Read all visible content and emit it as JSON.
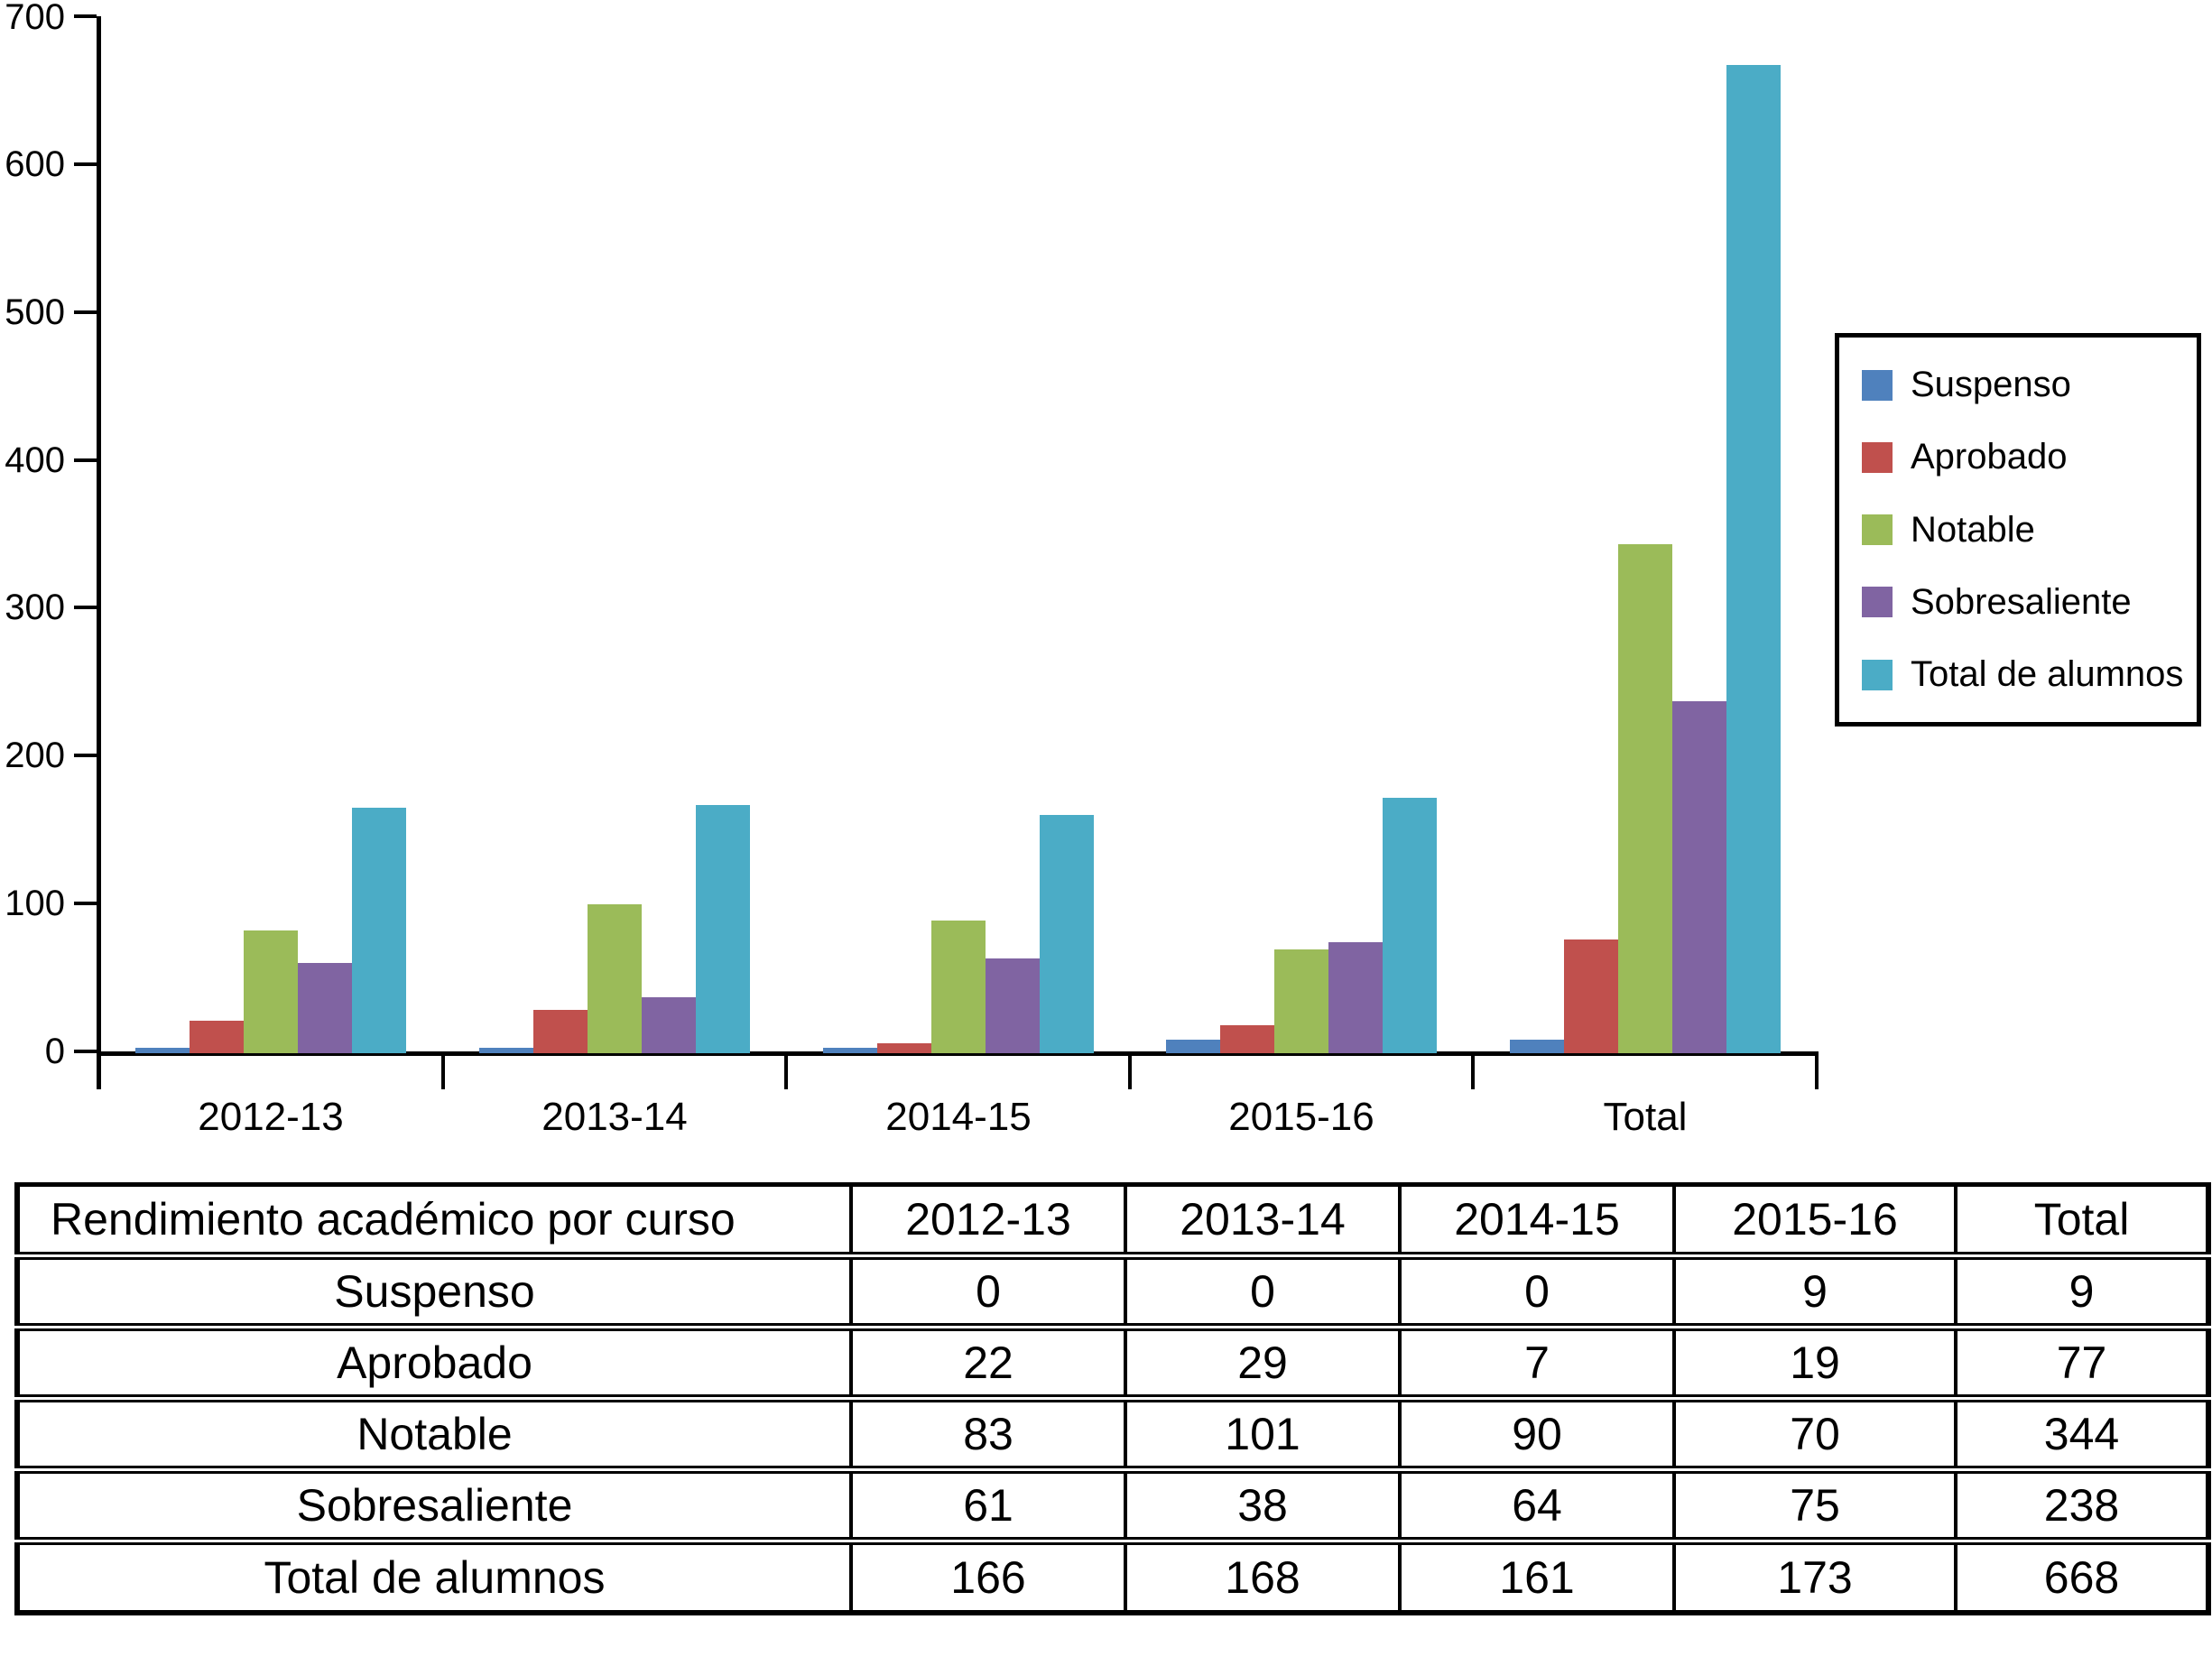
{
  "chart_data": {
    "type": "bar",
    "title": "",
    "categories": [
      "2012-13",
      "2013-14",
      "2014-15",
      "2015-16",
      "Total"
    ],
    "series": [
      {
        "name": "Suspenso",
        "color": "#4F81BD",
        "values": [
          0,
          0,
          0,
          9,
          9
        ]
      },
      {
        "name": "Aprobado",
        "color": "#C0504D",
        "values": [
          22,
          29,
          7,
          19,
          77
        ]
      },
      {
        "name": "Notable",
        "color": "#9BBB59",
        "values": [
          83,
          101,
          90,
          70,
          344
        ]
      },
      {
        "name": "Sobresaliente",
        "color": "#8064A2",
        "values": [
          61,
          38,
          64,
          75,
          238
        ]
      },
      {
        "name": "Total de alumnos",
        "color": "#4BACC6",
        "values": [
          166,
          168,
          161,
          173,
          668
        ]
      }
    ],
    "xlabel": "",
    "ylabel": "",
    "ylim": [
      0,
      700
    ],
    "yticks": [
      0,
      100,
      200,
      300,
      400,
      500,
      600,
      700
    ],
    "grid": false,
    "legend_position": "right",
    "axis_color": "#000000"
  },
  "table": {
    "header_label": "Rendimiento académico por curso",
    "columns": [
      "2012-13",
      "2013-14",
      "2014-15",
      "2015-16",
      "Total"
    ],
    "rows": [
      {
        "label": "Suspenso",
        "values": [
          0,
          0,
          0,
          9,
          9
        ]
      },
      {
        "label": "Aprobado",
        "values": [
          22,
          29,
          7,
          19,
          77
        ]
      },
      {
        "label": "Notable",
        "values": [
          83,
          101,
          90,
          70,
          344
        ]
      },
      {
        "label": "Sobresaliente",
        "values": [
          61,
          38,
          64,
          75,
          238
        ]
      },
      {
        "label": "Total de alumnos",
        "values": [
          166,
          168,
          161,
          173,
          668
        ]
      }
    ]
  }
}
